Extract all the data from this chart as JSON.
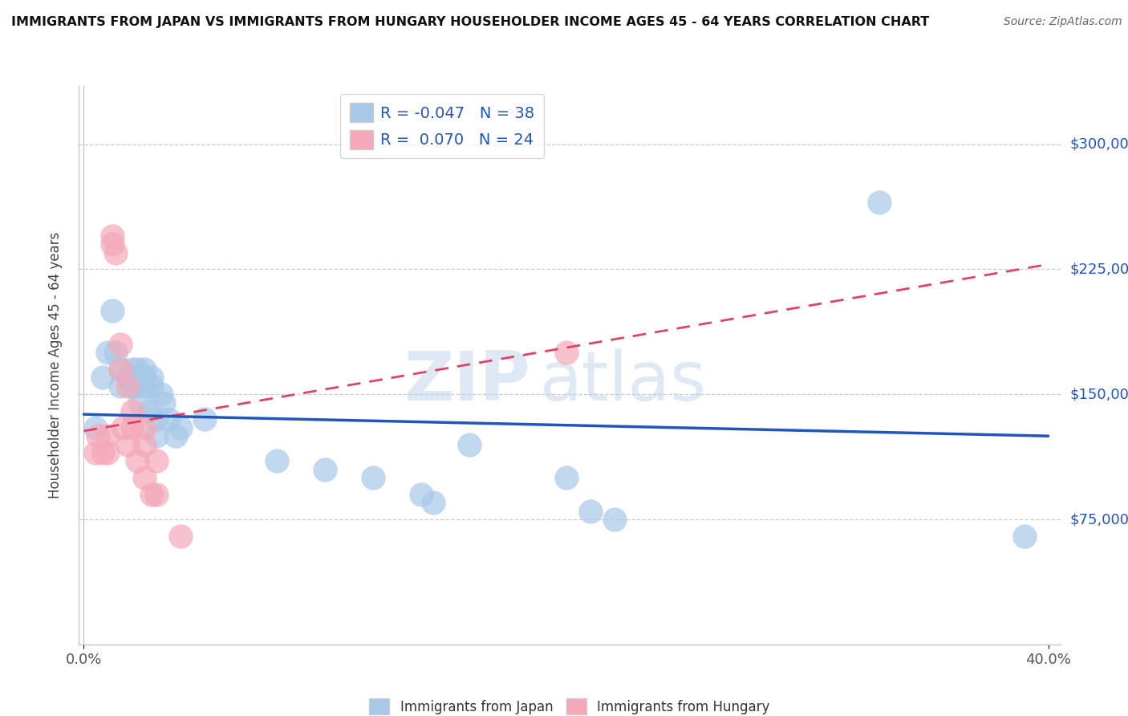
{
  "title": "IMMIGRANTS FROM JAPAN VS IMMIGRANTS FROM HUNGARY HOUSEHOLDER INCOME AGES 45 - 64 YEARS CORRELATION CHART",
  "source": "Source: ZipAtlas.com",
  "ylabel": "Householder Income Ages 45 - 64 years",
  "xlim": [
    -0.002,
    0.405
  ],
  "ylim": [
    0,
    335000
  ],
  "ytick_vals": [
    75000,
    150000,
    225000,
    300000
  ],
  "ytick_labels": [
    "$75,000",
    "$150,000",
    "$225,000",
    "$300,000"
  ],
  "xtick_vals": [
    0.0,
    0.4
  ],
  "xtick_labels": [
    "0.0%",
    "40.0%"
  ],
  "japan_R": -0.047,
  "japan_N": 38,
  "hungary_R": 0.07,
  "hungary_N": 24,
  "japan_color": "#a8c8e8",
  "hungary_color": "#f4a8b8",
  "japan_line_color": "#2255bb",
  "hungary_line_color": "#dd4466",
  "background_color": "#ffffff",
  "grid_color": "#cccccc",
  "japan_x": [
    0.005,
    0.008,
    0.01,
    0.012,
    0.013,
    0.015,
    0.015,
    0.018,
    0.02,
    0.02,
    0.022,
    0.022,
    0.023,
    0.025,
    0.025,
    0.025,
    0.027,
    0.028,
    0.028,
    0.03,
    0.03,
    0.032,
    0.033,
    0.035,
    0.038,
    0.04,
    0.05,
    0.08,
    0.1,
    0.12,
    0.14,
    0.145,
    0.16,
    0.2,
    0.21,
    0.22,
    0.33,
    0.39
  ],
  "japan_y": [
    130000,
    160000,
    175000,
    200000,
    175000,
    165000,
    155000,
    160000,
    165000,
    155000,
    155000,
    165000,
    145000,
    155000,
    160000,
    165000,
    140000,
    155000,
    160000,
    125000,
    135000,
    150000,
    145000,
    135000,
    125000,
    130000,
    135000,
    110000,
    105000,
    100000,
    90000,
    85000,
    120000,
    100000,
    80000,
    75000,
    265000,
    65000
  ],
  "hungary_x": [
    0.005,
    0.006,
    0.008,
    0.01,
    0.01,
    0.012,
    0.012,
    0.013,
    0.015,
    0.015,
    0.016,
    0.018,
    0.018,
    0.02,
    0.02,
    0.022,
    0.025,
    0.025,
    0.025,
    0.028,
    0.03,
    0.03,
    0.04,
    0.2
  ],
  "hungary_y": [
    115000,
    125000,
    115000,
    115000,
    125000,
    245000,
    240000,
    235000,
    165000,
    180000,
    130000,
    155000,
    120000,
    130000,
    140000,
    110000,
    120000,
    130000,
    100000,
    90000,
    110000,
    90000,
    65000,
    175000
  ],
  "japan_line_x0": 0.0,
  "japan_line_x1": 0.4,
  "japan_line_y0": 138000,
  "japan_line_y1": 125000,
  "hungary_line_x0": 0.0,
  "hungary_line_x1": 0.4,
  "hungary_line_y0": 128000,
  "hungary_line_y1": 228000
}
